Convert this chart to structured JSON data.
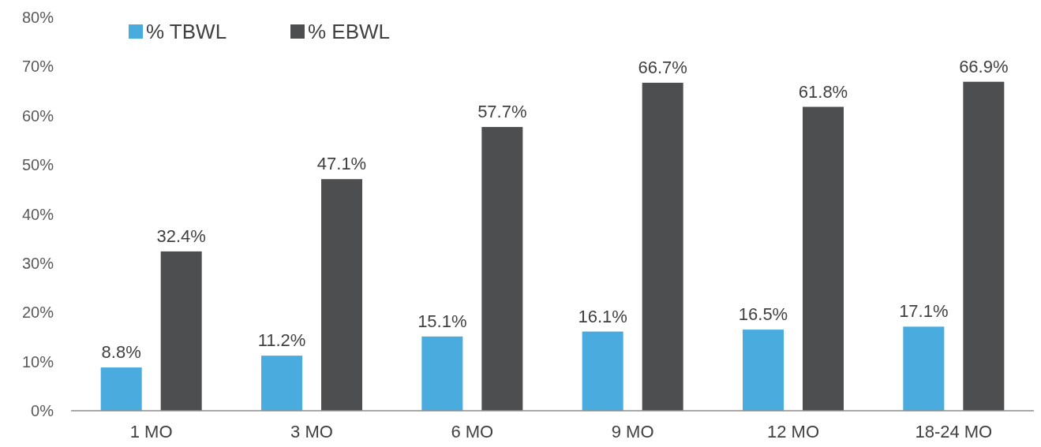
{
  "chart_data": {
    "type": "bar",
    "categories": [
      "1 MO",
      "3 MO",
      "6 MO",
      "9 MO",
      "12 MO",
      "18-24 MO"
    ],
    "series": [
      {
        "name": "% TBWL",
        "color": "#4aabdf",
        "values": [
          8.8,
          11.2,
          15.1,
          16.1,
          16.5,
          17.1
        ],
        "value_labels": [
          "8.8%",
          "11.2%",
          "15.1%",
          "16.1%",
          "16.5%",
          "17.1%"
        ]
      },
      {
        "name": "% EBWL",
        "color": "#4d4e50",
        "values": [
          32.4,
          47.1,
          57.7,
          66.7,
          61.8,
          66.9
        ],
        "value_labels": [
          "32.4%",
          "47.1%",
          "57.7%",
          "66.7%",
          "61.8%",
          "66.9%"
        ]
      }
    ],
    "ylim": [
      0,
      80
    ],
    "yticks": [
      {
        "value": 0,
        "label": "0%"
      },
      {
        "value": 10,
        "label": "10%"
      },
      {
        "value": 20,
        "label": "20%"
      },
      {
        "value": 30,
        "label": "30%"
      },
      {
        "value": 40,
        "label": "40%"
      },
      {
        "value": 50,
        "label": "50%"
      },
      {
        "value": 60,
        "label": "60%"
      },
      {
        "value": 70,
        "label": "70%"
      },
      {
        "value": 80,
        "label": "80%"
      }
    ],
    "grid": false,
    "legend": "top left"
  }
}
